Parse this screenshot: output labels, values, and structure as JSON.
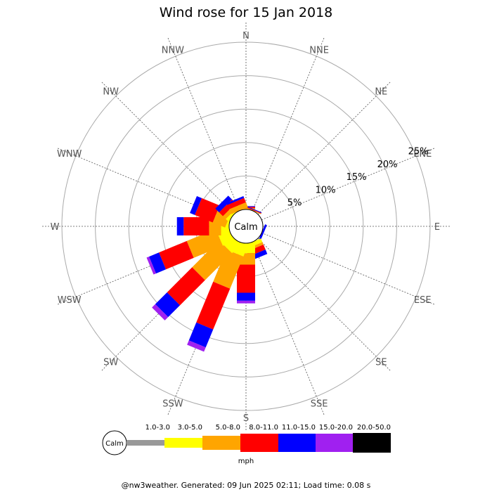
{
  "chart_data": {
    "type": "wind-rose",
    "title": "Wind rose for 15 Jan 2018",
    "calm_label": "Calm",
    "unit": "mph",
    "footer": "@nw3weather. Generated: 09 Jun 2025 02:11; Load time: 0.08 s",
    "directions": [
      "N",
      "NNE",
      "NE",
      "ENE",
      "E",
      "ESE",
      "SE",
      "SSE",
      "S",
      "SSW",
      "SW",
      "WSW",
      "W",
      "WNW",
      "NW",
      "NNW"
    ],
    "radial_ticks": [
      {
        "value": 5,
        "label": "5%"
      },
      {
        "value": 10,
        "label": "10%"
      },
      {
        "value": 15,
        "label": "15%"
      },
      {
        "value": 20,
        "label": "20%"
      },
      {
        "value": 25,
        "label": "25%"
      }
    ],
    "rmax": 25,
    "speed_bins": [
      {
        "label": "1.0-3.0",
        "color": "#999999"
      },
      {
        "label": "3.0-5.0",
        "color": "#ffff00"
      },
      {
        "label": "5.0-8.0",
        "color": "#ffa500"
      },
      {
        "label": "8.0-11.0",
        "color": "#ff0000"
      },
      {
        "label": "11.0-15.0",
        "color": "#0000ff"
      },
      {
        "label": "15.0-20.0",
        "color": "#a020f0"
      },
      {
        "label": "20.0-50.0",
        "color": "#000000"
      }
    ],
    "series": [
      {
        "direction": "N",
        "cumulative": [
          0.0,
          0.0,
          0.2,
          0.4,
          0.5,
          0.5,
          0.5
        ]
      },
      {
        "direction": "NNE",
        "cumulative": [
          0.0,
          0.0,
          0.1,
          0.2,
          0.3,
          0.3,
          0.3
        ]
      },
      {
        "direction": "NE",
        "cumulative": [
          0.0,
          0.0,
          0.0,
          0.0,
          0.0,
          0.0,
          0.0
        ]
      },
      {
        "direction": "ENE",
        "cumulative": [
          0.0,
          0.0,
          0.0,
          0.0,
          0.0,
          0.0,
          0.0
        ]
      },
      {
        "direction": "E",
        "cumulative": [
          0.0,
          0.0,
          0.0,
          0.0,
          0.0,
          0.0,
          0.0
        ]
      },
      {
        "direction": "ESE",
        "cumulative": [
          0.0,
          0.0,
          0.0,
          0.0,
          0.3,
          0.3,
          0.3
        ]
      },
      {
        "direction": "SE",
        "cumulative": [
          0.0,
          0.0,
          0.0,
          0.0,
          0.0,
          0.0,
          0.0
        ]
      },
      {
        "direction": "SSE",
        "cumulative": [
          0.0,
          0.6,
          1.0,
          1.8,
          2.5,
          2.5,
          2.5
        ]
      },
      {
        "direction": "S",
        "cumulative": [
          0.0,
          1.5,
          3.2,
          7.4,
          8.6,
          9.0,
          9.0
        ]
      },
      {
        "direction": "SSW",
        "cumulative": [
          0.0,
          1.8,
          7.0,
          13.6,
          16.5,
          17.2,
          17.2
        ]
      },
      {
        "direction": "SW",
        "cumulative": [
          0.0,
          1.8,
          7.5,
          12.8,
          15.3,
          16.0,
          16.0
        ]
      },
      {
        "direction": "WSW",
        "cumulative": [
          0.0,
          1.8,
          6.5,
          11.0,
          12.6,
          13.0,
          13.0
        ]
      },
      {
        "direction": "W",
        "cumulative": [
          0.0,
          1.2,
          3.0,
          6.8,
          7.8,
          7.8,
          7.8
        ]
      },
      {
        "direction": "WNW",
        "cumulative": [
          0.0,
          0.3,
          2.3,
          5.2,
          6.0,
          6.0,
          6.0
        ]
      },
      {
        "direction": "NW",
        "cumulative": [
          0.0,
          0.4,
          1.0,
          1.8,
          2.6,
          2.6,
          2.6
        ]
      },
      {
        "direction": "NNW",
        "cumulative": [
          0.0,
          0.0,
          0.8,
          1.5,
          1.8,
          1.8,
          1.8
        ]
      }
    ]
  }
}
